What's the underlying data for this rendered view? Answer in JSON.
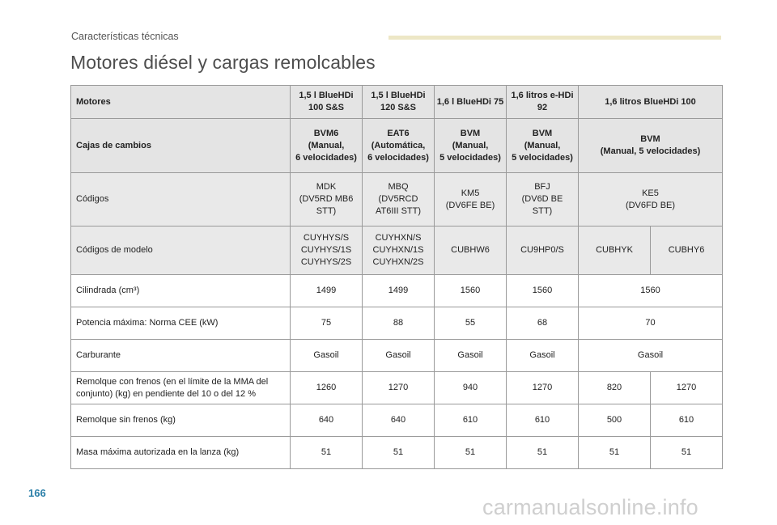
{
  "section_label": "Características técnicas",
  "title": "Motores diésel y cargas remolcables",
  "page_number": "166",
  "watermark": "carmanualsonline.info",
  "table": {
    "motores": {
      "label": "Motores",
      "c1": "1,5 l BlueHDi 100 S&S",
      "c2": "1,5 l BlueHDi 120 S&S",
      "c3": "1,6 l BlueHDi 75",
      "c4": "1,6 litros e-HDi 92",
      "c5": "1,6 litros BlueHDi 100"
    },
    "cajas": {
      "label": "Cajas de cambios",
      "c1_name": "BVM6",
      "c1_line2": "(Manual,",
      "c1_line3": "6 velocidades)",
      "c2_name": "EAT6",
      "c2_line2": "(Automática,",
      "c2_line3": "6 velocidades)",
      "c3_name": "BVM",
      "c3_line2": "(Manual,",
      "c3_line3": "5 velocidades)",
      "c4_name": "BVM",
      "c4_line2": "(Manual,",
      "c4_line3": "5 velocidades)",
      "c5_name": "BVM",
      "c5_line2": "(Manual, 5 velocidades)"
    },
    "codigos": {
      "label": "Códigos",
      "c1_l1": "MDK",
      "c1_l2": "(DV5RD MB6",
      "c1_l3": "STT)",
      "c2_l1": "MBQ",
      "c2_l2": "(DV5RCD",
      "c2_l3": "AT6III STT)",
      "c3_l1": "KM5",
      "c3_l2": "(DV6FE BE)",
      "c4_l1": "BFJ",
      "c4_l2": "(DV6D BE",
      "c4_l3": "STT)",
      "c5_l1": "KE5",
      "c5_l2": "(DV6FD BE)"
    },
    "codigos_modelo": {
      "label": "Códigos de modelo",
      "c1_l1": "CUYHYS/S",
      "c1_l2": "CUYHYS/1S",
      "c1_l3": "CUYHYS/2S",
      "c2_l1": "CUYHXN/S",
      "c2_l2": "CUYHXN/1S",
      "c2_l3": "CUYHXN/2S",
      "c3": "CUBHW6",
      "c4": "CU9HP0/S",
      "c5a": "CUBHYK",
      "c5b": "CUBHY6"
    },
    "cilindrada": {
      "label": "Cilindrada (cm³)",
      "c1": "1499",
      "c2": "1499",
      "c3": "1560",
      "c4": "1560",
      "c5": "1560"
    },
    "potencia": {
      "label": "Potencia máxima: Norma CEE (kW)",
      "c1": "75",
      "c2": "88",
      "c3": "55",
      "c4": "68",
      "c5": "70"
    },
    "carburante": {
      "label": "Carburante",
      "c1": "Gasoil",
      "c2": "Gasoil",
      "c3": "Gasoil",
      "c4": "Gasoil",
      "c5": "Gasoil"
    },
    "remolque_con": {
      "label_l1": "Remolque con frenos (en el límite de la MMA del",
      "label_l2": "conjunto) (kg) en pendiente del 10 o del 12 %",
      "c1": "1260",
      "c2": "1270",
      "c3": "940",
      "c4": "1270",
      "c5a": "820",
      "c5b": "1270"
    },
    "remolque_sin": {
      "label": "Remolque sin frenos (kg)",
      "c1": "640",
      "c2": "640",
      "c3": "610",
      "c4": "610",
      "c5a": "500",
      "c5b": "610"
    },
    "masa": {
      "label": "Masa máxima autorizada en la lanza (kg)",
      "c1": "51",
      "c2": "51",
      "c3": "51",
      "c4": "51",
      "c5a": "51",
      "c5b": "51"
    }
  }
}
